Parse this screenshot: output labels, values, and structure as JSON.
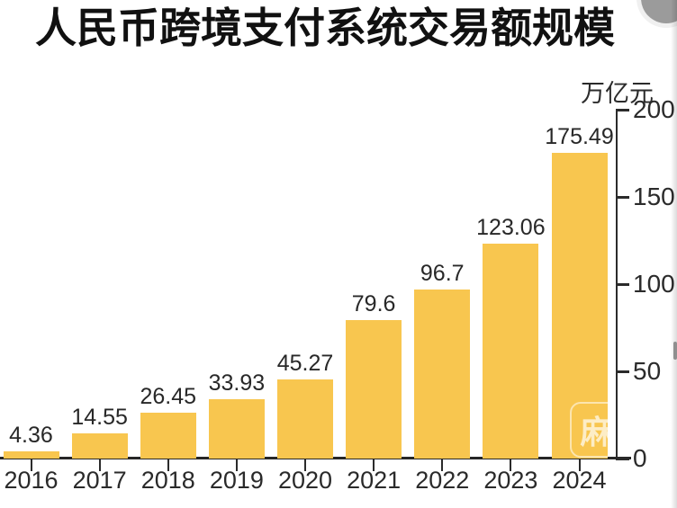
{
  "header": {
    "title": "人民币跨境支付系统交易额规模"
  },
  "chart_data": {
    "type": "bar",
    "title": "人民币跨境支付系统交易额规模",
    "unit_label": "万亿元",
    "categories": [
      "2016",
      "2017",
      "2018",
      "2019",
      "2020",
      "2021",
      "2022",
      "2023",
      "2024"
    ],
    "values": [
      4.36,
      14.55,
      26.45,
      33.93,
      45.27,
      79.6,
      96.7,
      123.06,
      175.49
    ],
    "value_labels": [
      "4.36",
      "14.55",
      "26.45",
      "33.93",
      "45.27",
      "79.6",
      "96.7",
      "123.06",
      "175.49"
    ],
    "xlabel": "",
    "ylabel": "万亿元",
    "ylim": [
      0,
      200
    ],
    "yticks": [
      0,
      50,
      100,
      150,
      200
    ],
    "yaxis_side": "right",
    "grid": false,
    "legend": false,
    "bar_color": "#F8C64F",
    "axis_color": "#2b2b2b",
    "text_color": "#282828",
    "title_color": "#111111"
  },
  "watermark": {
    "char": "麻"
  }
}
